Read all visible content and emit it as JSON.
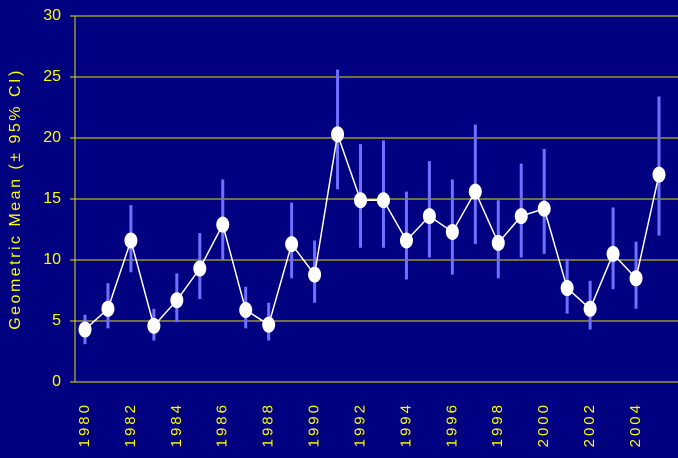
{
  "chart_data": {
    "type": "line",
    "ylabel": "Geometric Mean (± 95% CI)",
    "categories": [
      "1980",
      null,
      "1982",
      null,
      "1984",
      null,
      "1986",
      null,
      "1988",
      null,
      "1990",
      null,
      "1992",
      null,
      "1994",
      null,
      "1996",
      null,
      "1998",
      null,
      "2000",
      null,
      "2002",
      null,
      "2004",
      null
    ],
    "values": [
      4.3,
      6.0,
      11.6,
      4.6,
      6.7,
      9.3,
      12.9,
      5.9,
      4.7,
      11.3,
      8.8,
      20.3,
      14.9,
      14.9,
      11.6,
      13.6,
      12.3,
      15.6,
      11.4,
      13.6,
      14.2,
      7.7,
      6.0,
      10.5,
      8.5,
      17.0
    ],
    "ci_lower": [
      3.1,
      4.4,
      9.0,
      3.4,
      4.9,
      6.8,
      10.0,
      4.4,
      3.4,
      8.5,
      6.5,
      15.8,
      11.0,
      11.0,
      8.4,
      10.2,
      8.8,
      11.3,
      8.5,
      10.2,
      10.5,
      5.6,
      4.3,
      7.6,
      6.0,
      12.0
    ],
    "ci_upper": [
      5.5,
      8.1,
      14.5,
      6.0,
      8.9,
      12.2,
      16.6,
      7.8,
      6.5,
      14.7,
      11.6,
      25.6,
      19.5,
      19.8,
      15.6,
      18.1,
      16.6,
      21.1,
      14.9,
      17.9,
      19.1,
      10.1,
      8.3,
      14.3,
      11.5,
      23.4
    ],
    "color": "#ffffff",
    "error_color": "#7070ff",
    "background": "#000080",
    "grid_color": "#e0e000",
    "text_color": "#ffff00",
    "ylim": [
      0,
      30
    ],
    "yticks": [
      0,
      5,
      10,
      15,
      20,
      25,
      30
    ],
    "grid": true
  }
}
